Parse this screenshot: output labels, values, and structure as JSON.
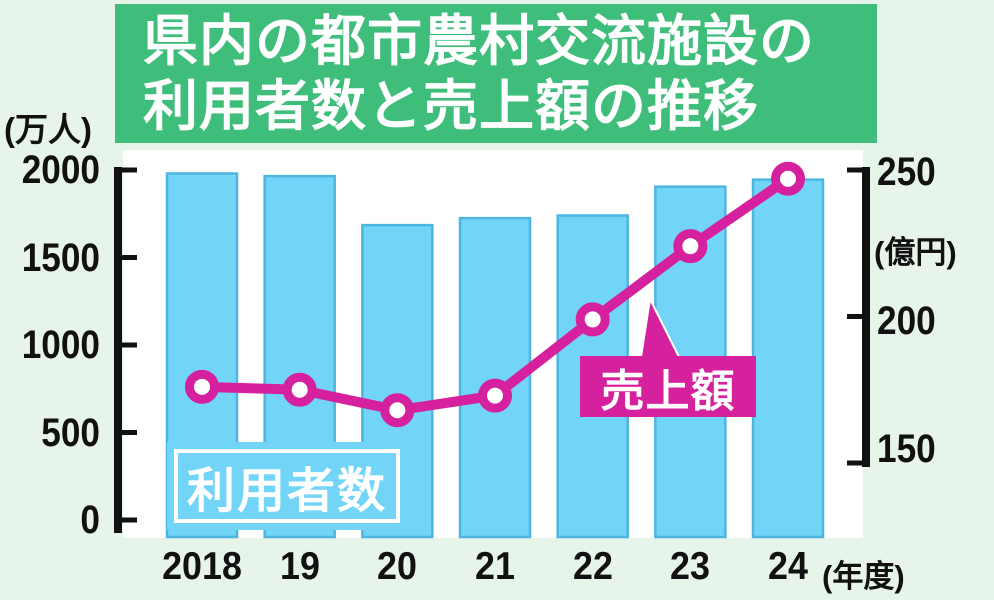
{
  "title": {
    "line1": "県内の都市農村交流施設の",
    "line2": "利用者数と売上額の推移"
  },
  "colors": {
    "background": "#e7f4e9",
    "title_green": "#3fbe7b",
    "bar_cyan": "#72d4f7",
    "bar_border": "#4cb6e0",
    "magenta": "#d6219f",
    "axis_black": "#111111",
    "plot_white": "#ffffff"
  },
  "left_axis": {
    "unit_label": "(万人)",
    "ticks": [
      "2000",
      "1500",
      "1000",
      "500",
      "0"
    ]
  },
  "right_axis": {
    "unit_label": "(億円)",
    "ticks": [
      "250",
      "200",
      "150"
    ]
  },
  "x_axis": {
    "labels": [
      "2018",
      "19",
      "20",
      "21",
      "22",
      "23",
      "24"
    ],
    "suffix": "(年度)"
  },
  "legend": {
    "bars": "利用者数",
    "line": "売上額"
  },
  "chart_data": {
    "type": "bar+line",
    "title": "県内の都市農村交流施設の利用者数と売上額の推移",
    "categories": [
      "2018",
      "19",
      "20",
      "21",
      "22",
      "23",
      "24"
    ],
    "series": [
      {
        "name": "利用者数",
        "type": "bar",
        "axis": "left",
        "unit": "万人",
        "values": [
          1980,
          1965,
          1685,
          1725,
          1740,
          1905,
          1945
        ]
      },
      {
        "name": "売上額",
        "type": "line",
        "axis": "right",
        "unit": "億円",
        "values": [
          176,
          175,
          168,
          173,
          199,
          224,
          247
        ]
      }
    ],
    "left_ylim": [
      0,
      2000
    ],
    "right_ylim": [
      150,
      250
    ],
    "grid": false,
    "legend_position": "inside"
  }
}
